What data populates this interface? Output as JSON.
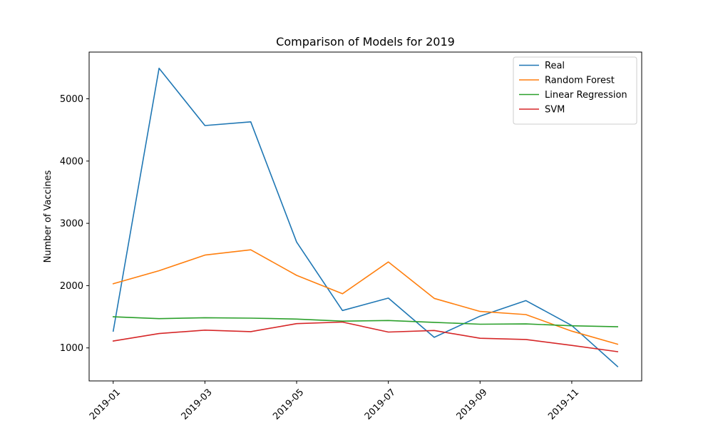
{
  "chart_data": {
    "type": "line",
    "title": "Comparison of Models for 2019",
    "xlabel": "",
    "ylabel": "Number of Vaccines",
    "x": [
      "2019-01",
      "2019-02",
      "2019-03",
      "2019-04",
      "2019-05",
      "2019-06",
      "2019-07",
      "2019-08",
      "2019-09",
      "2019-10",
      "2019-11",
      "2019-12"
    ],
    "x_ticks": [
      "2019-01",
      "2019-03",
      "2019-05",
      "2019-07",
      "2019-09",
      "2019-11"
    ],
    "y_ticks": [
      1000,
      2000,
      3000,
      4000,
      5000
    ],
    "ylim": [
      470,
      5750
    ],
    "grid": false,
    "legend_position": "top-right",
    "series": [
      {
        "name": "Real",
        "color": "#1f77b4",
        "values": [
          1270,
          5490,
          4570,
          4630,
          2700,
          1600,
          1800,
          1170,
          1510,
          1760,
          1360,
          700
        ]
      },
      {
        "name": "Random Forest",
        "color": "#ff7f0e",
        "values": [
          2030,
          2240,
          2490,
          2575,
          2165,
          1870,
          2380,
          1795,
          1585,
          1535,
          1270,
          1060
        ]
      },
      {
        "name": "Linear Regression",
        "color": "#2ca02c",
        "values": [
          1500,
          1470,
          1485,
          1478,
          1463,
          1430,
          1440,
          1410,
          1380,
          1385,
          1355,
          1340
        ]
      },
      {
        "name": "SVM",
        "color": "#d62728",
        "values": [
          1110,
          1230,
          1285,
          1262,
          1390,
          1415,
          1255,
          1280,
          1155,
          1135,
          1040,
          940
        ]
      }
    ]
  }
}
